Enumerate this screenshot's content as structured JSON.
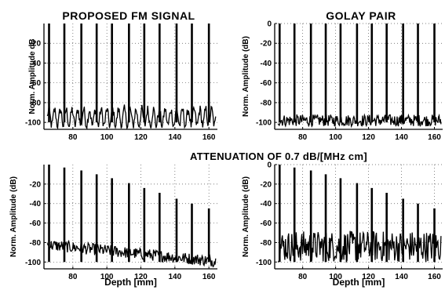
{
  "figure": {
    "middle_title": "ATTENUATION OF 0.7 dB/[MHz cm]"
  },
  "chart_data": [
    {
      "type": "line",
      "title": "PROPOSED FM SIGNAL",
      "xlabel": "",
      "ylabel": "Norm. Amplitude dB",
      "xlim": [
        63,
        165
      ],
      "ylim": [
        -107,
        0
      ],
      "xticks": [
        80,
        100,
        120,
        140,
        160
      ],
      "yticks": [
        -20,
        -40,
        -60,
        -80,
        -100
      ],
      "ytick_labels": [
        "-20",
        "-40",
        "-60",
        "-80",
        "-100"
      ],
      "grid": "dotted",
      "peaks_x": [
        66,
        75,
        85,
        94,
        103,
        113,
        122,
        131,
        141,
        150,
        160
      ],
      "peaks_y": [
        0,
        0,
        0,
        0,
        0,
        0,
        0,
        0,
        0,
        0,
        0
      ],
      "floor": "oscillating sidelobes about -85 to -105 dB"
    },
    {
      "type": "line",
      "title": "GOLAY PAIR",
      "xlabel": "",
      "ylabel": "Norm. Amplitude (dB)",
      "xlim": [
        63,
        165
      ],
      "ylim": [
        -107,
        0
      ],
      "xticks": [
        80,
        100,
        120,
        140,
        160
      ],
      "yticks": [
        0,
        -20,
        -40,
        -60,
        -80,
        -100
      ],
      "ytick_labels": [
        "0",
        "-20",
        "-40",
        "-60",
        "-80",
        "-100"
      ],
      "grid": "dotted",
      "peaks_x": [
        66,
        75,
        85,
        94,
        103,
        113,
        122,
        131,
        141,
        150,
        160
      ],
      "peaks_y": [
        0,
        0,
        0,
        0,
        0,
        0,
        0,
        0,
        0,
        0,
        0
      ],
      "floor": "noise about -92 to -105 dB"
    },
    {
      "type": "line",
      "title": "",
      "xlabel": "Depth [mm]",
      "ylabel": "Norm. Amplitude (dB)",
      "xlim": [
        63,
        165
      ],
      "ylim": [
        -107,
        0
      ],
      "xticks": [
        80,
        100,
        120,
        140,
        160
      ],
      "yticks": [
        -20,
        -40,
        -60,
        -80,
        -100
      ],
      "ytick_labels": [
        "-20",
        "-40",
        "-60",
        "-80",
        "-100"
      ],
      "grid": "dotted",
      "peaks_x": [
        66,
        75,
        85,
        94,
        103,
        113,
        122,
        131,
        141,
        150,
        160
      ],
      "peaks_y": [
        0,
        -3,
        -6,
        -10,
        -14,
        -19,
        -24,
        -29,
        -35,
        -40,
        -45
      ],
      "floor": "sidelobes about -75 to -100 dB decaying with depth"
    },
    {
      "type": "line",
      "title": "",
      "xlabel": "Depth [mm]",
      "ylabel": "Norm. Amplitude (dB)",
      "xlim": [
        63,
        165
      ],
      "ylim": [
        -107,
        0
      ],
      "xticks": [
        80,
        100,
        120,
        140,
        160
      ],
      "yticks": [
        0,
        -20,
        -40,
        -60,
        -80,
        -100
      ],
      "ytick_labels": [
        "0",
        "-20",
        "-40",
        "-60",
        "-80",
        "-100"
      ],
      "grid": "dotted",
      "peaks_x": [
        66,
        75,
        85,
        94,
        103,
        113,
        122,
        131,
        141,
        150,
        160
      ],
      "peaks_y": [
        0,
        -3,
        -6,
        -10,
        -14,
        -19,
        -24,
        -29,
        -35,
        -40,
        -45
      ],
      "floor": "noise about -65 to -105 dB"
    }
  ]
}
